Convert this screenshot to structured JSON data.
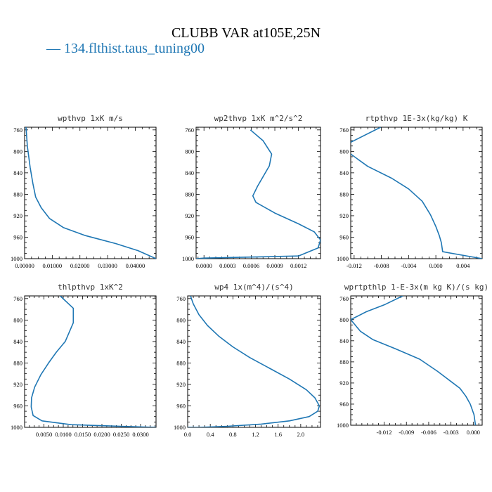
{
  "title": "CLUBB VAR at105E,25N",
  "legend": {
    "dash": "—",
    "label": "134.flthist.taus_tuning00",
    "color": "#1f77b4"
  },
  "chart_data": [
    {
      "type": "line",
      "title": "wpthvp 1xK m/s",
      "xlim": [
        0.0,
        0.0475
      ],
      "ylim": [
        1000,
        755
      ],
      "xticks": [
        0.0,
        0.01,
        0.02,
        0.03,
        0.04
      ],
      "xtick_labels": [
        "0.00000",
        "0.01000",
        "0.02000",
        "0.03000",
        "0.04000"
      ],
      "yticks": [
        760,
        800,
        840,
        880,
        920,
        960,
        1000
      ],
      "series": [
        {
          "color": "#1f77b4",
          "x": [
            0.0005,
            0.001,
            0.002,
            0.003,
            0.004,
            0.006,
            0.009,
            0.014,
            0.022,
            0.033,
            0.041,
            0.0475
          ],
          "y": [
            755,
            790,
            830,
            860,
            885,
            905,
            925,
            942,
            957,
            972,
            985,
            1000
          ]
        }
      ]
    },
    {
      "type": "line",
      "title": "wp2thvp 1xK m^2/s^2",
      "xlim": [
        -0.0001,
        0.00148
      ],
      "ylim": [
        1000,
        755
      ],
      "xticks": [
        0.0,
        0.0003,
        0.0006,
        0.0009,
        0.0012
      ],
      "xtick_labels": [
        "0.0000",
        "0.0003",
        "0.0006",
        "0.0009",
        "0.0012"
      ],
      "yticks": [
        760,
        800,
        840,
        880,
        920,
        960,
        1000
      ],
      "series": [
        {
          "color": "#1f77b4",
          "x": [
            0.00059,
            0.00075,
            0.00086,
            0.00083,
            0.00068,
            0.00062,
            0.00066,
            0.0009,
            0.0012,
            0.0014,
            0.00148,
            0.00145,
            0.0012,
            0.0,
            -0.0001
          ],
          "y": [
            760,
            780,
            805,
            827,
            865,
            883,
            895,
            915,
            935,
            950,
            965,
            980,
            995,
            999,
            1000
          ]
        }
      ]
    },
    {
      "type": "line",
      "title": "rtpthvp 1E-3x(kg/kg) K",
      "xlim": [
        -0.0125,
        0.0068
      ],
      "ylim": [
        1000,
        755
      ],
      "xticks": [
        -0.012,
        -0.008,
        -0.004,
        0.0,
        0.004
      ],
      "xtick_labels": [
        "-0.012",
        "-0.008",
        "-0.004",
        "0.000",
        "0.004"
      ],
      "yticks": [
        760,
        800,
        840,
        880,
        920,
        960,
        1000
      ],
      "series": [
        {
          "color": "#1f77b4",
          "x": [
            -0.0081,
            -0.0125
          ],
          "y": [
            755,
            783
          ]
        },
        {
          "color": "#1f77b4",
          "x": [
            -0.0125,
            -0.01,
            -0.0065,
            -0.004,
            -0.002,
            -0.0008,
            0.0,
            0.0005,
            0.0008,
            0.001,
            0.0068
          ],
          "y": [
            805,
            828,
            850,
            870,
            893,
            918,
            940,
            957,
            970,
            987,
            1000
          ]
        }
      ]
    },
    {
      "type": "line",
      "title": "thlpthvp 1xK^2",
      "xlim": [
        0.0,
        0.034
      ],
      "ylim": [
        1000,
        755
      ],
      "xticks": [
        0.005,
        0.01,
        0.015,
        0.02,
        0.025,
        0.03
      ],
      "xtick_labels": [
        "0.0050",
        "0.0100",
        "0.0150",
        "0.0200",
        "0.0250",
        "0.0300"
      ],
      "yticks": [
        760,
        800,
        840,
        880,
        920,
        960,
        1000
      ],
      "series": [
        {
          "color": "#1f77b4",
          "x": [
            0.0092,
            0.0126,
            0.0126,
            0.0105,
            0.0082,
            0.0062,
            0.0042,
            0.0026,
            0.0018,
            0.0017,
            0.0022,
            0.0045,
            0.012,
            0.025,
            0.034
          ],
          "y": [
            755,
            778,
            805,
            840,
            860,
            880,
            902,
            925,
            945,
            962,
            978,
            988,
            995,
            998,
            1000
          ]
        }
      ]
    },
    {
      "type": "line",
      "title": "wp4 1x(m^4)/(s^4)",
      "xlim": [
        0.0,
        2.35
      ],
      "ylim": [
        1000,
        755
      ],
      "xticks": [
        0.0,
        0.4,
        0.8,
        1.2,
        1.6,
        2.0
      ],
      "xtick_labels": [
        "0.0",
        "0.4",
        "0.8",
        "1.2",
        "1.6",
        "2.0"
      ],
      "yticks": [
        760,
        800,
        840,
        880,
        920,
        960,
        1000
      ],
      "series": [
        {
          "color": "#1f77b4",
          "x": [
            0.05,
            0.1,
            0.2,
            0.35,
            0.55,
            0.8,
            1.1,
            1.45,
            1.8,
            2.1,
            2.25,
            2.33,
            2.3,
            2.15,
            1.8,
            1.3,
            0.7,
            0.2,
            0.0
          ],
          "y": [
            755,
            770,
            790,
            810,
            830,
            850,
            870,
            890,
            910,
            930,
            945,
            960,
            970,
            980,
            988,
            994,
            998,
            1000,
            1000
          ]
        }
      ]
    },
    {
      "type": "line",
      "title": "wprtpthlp 1-E-3x(m kg K)/(s kg)",
      "xlim": [
        -0.0165,
        0.0012
      ],
      "ylim": [
        1000,
        755
      ],
      "xticks": [
        -0.012,
        -0.009,
        -0.006,
        -0.003,
        0.0
      ],
      "xtick_labels": [
        "-0.012",
        "-0.009",
        "-0.006",
        "-0.003",
        "0.000"
      ],
      "yticks": [
        760,
        800,
        840,
        880,
        920,
        960,
        1000
      ],
      "series": [
        {
          "color": "#1f77b4",
          "x": [
            -0.0095,
            -0.012,
            -0.0144,
            -0.0165,
            -0.0152,
            -0.0135,
            -0.0105,
            -0.0072,
            -0.0048,
            -0.0032,
            -0.0018,
            -0.001,
            -0.0004,
            0.0001,
            0.0003
          ],
          "y": [
            755,
            772,
            785,
            800,
            822,
            838,
            855,
            875,
            898,
            915,
            930,
            945,
            960,
            980,
            1000
          ]
        }
      ]
    }
  ]
}
